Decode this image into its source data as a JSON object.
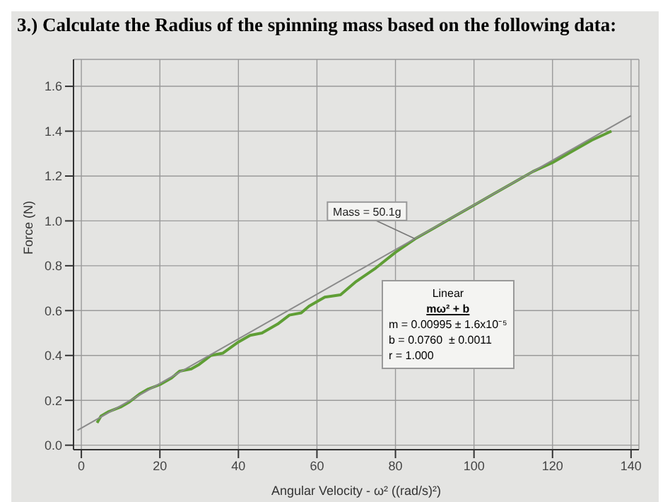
{
  "chart_data": {
    "type": "line",
    "title": "3.) Calculate the Radius of the spinning mass based on the following data:",
    "xlabel": "Angular Velocity - ω² ((rad/s)²)",
    "ylabel": "Force (N)",
    "xlim": [
      -2,
      142
    ],
    "xticks": [
      0,
      20,
      40,
      60,
      80,
      100,
      120,
      140
    ],
    "ylim": [
      -0.02,
      1.72
    ],
    "yticks": [
      {
        "value": 0,
        "label": "0.0"
      },
      {
        "value": 0.2,
        "label": "0.2"
      },
      {
        "value": 0.4,
        "label": "0.4"
      },
      {
        "value": 0.6,
        "label": "0.6"
      },
      {
        "value": 0.8,
        "label": "0.8"
      },
      {
        "value": 1,
        "label": "1.0"
      },
      {
        "value": 1.2,
        "label": "1.2"
      },
      {
        "value": 1.4,
        "label": "1.4"
      },
      {
        "value": 1.6,
        "label": "1.6"
      }
    ],
    "grid": true,
    "marker": "none",
    "line_style": "solid",
    "series": [
      {
        "color": "#5f9e35",
        "x": [
          4,
          5,
          7,
          10,
          12,
          15,
          17,
          20,
          23,
          25,
          28,
          30,
          33,
          36,
          40,
          43,
          46,
          50,
          53,
          56,
          58,
          62,
          66,
          70,
          75,
          80,
          85,
          90,
          95,
          100,
          105,
          110,
          115,
          120,
          125,
          130,
          135
        ],
        "values": [
          0.1,
          0.13,
          0.15,
          0.17,
          0.19,
          0.23,
          0.25,
          0.27,
          0.3,
          0.33,
          0.34,
          0.36,
          0.4,
          0.41,
          0.46,
          0.49,
          0.5,
          0.54,
          0.58,
          0.59,
          0.62,
          0.66,
          0.67,
          0.73,
          0.79,
          0.86,
          0.92,
          0.97,
          1.02,
          1.07,
          1.12,
          1.17,
          1.22,
          1.26,
          1.31,
          1.36,
          1.4
        ]
      },
      {
        "type": "line",
        "color": "#8a8a8a",
        "x": [
          -1,
          140
        ],
        "values": [
          0.066,
          1.469
        ]
      }
    ],
    "annotations": [
      {
        "text": "Mass = 50.1g",
        "x": 85,
        "y": 0.92
      },
      "Linear",
      "mω² + b",
      "m = 0.00995 ± 1.6x10⁻⁵",
      "b = 0.0760  ± 0.0011",
      "r = 1.000"
    ]
  }
}
